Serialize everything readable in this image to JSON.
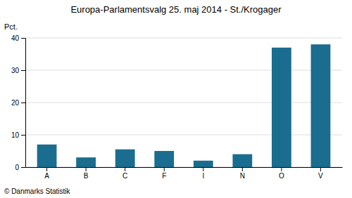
{
  "chart_data": {
    "type": "bar",
    "title": "Europa-Parlamentsvalg 25. maj 2014 - St./Krogager",
    "ylabel": "Pct.",
    "footer": "© Danmarks Statistik",
    "categories": [
      "A",
      "B",
      "C",
      "F",
      "I",
      "N",
      "O",
      "V"
    ],
    "values": [
      7.0,
      3.0,
      5.5,
      5.0,
      2.0,
      4.0,
      37.0,
      38.0
    ],
    "color": "#1a6d8e",
    "ylim": [
      0,
      40
    ],
    "yticks": [
      0,
      10,
      20,
      30,
      40
    ],
    "grid": true
  }
}
